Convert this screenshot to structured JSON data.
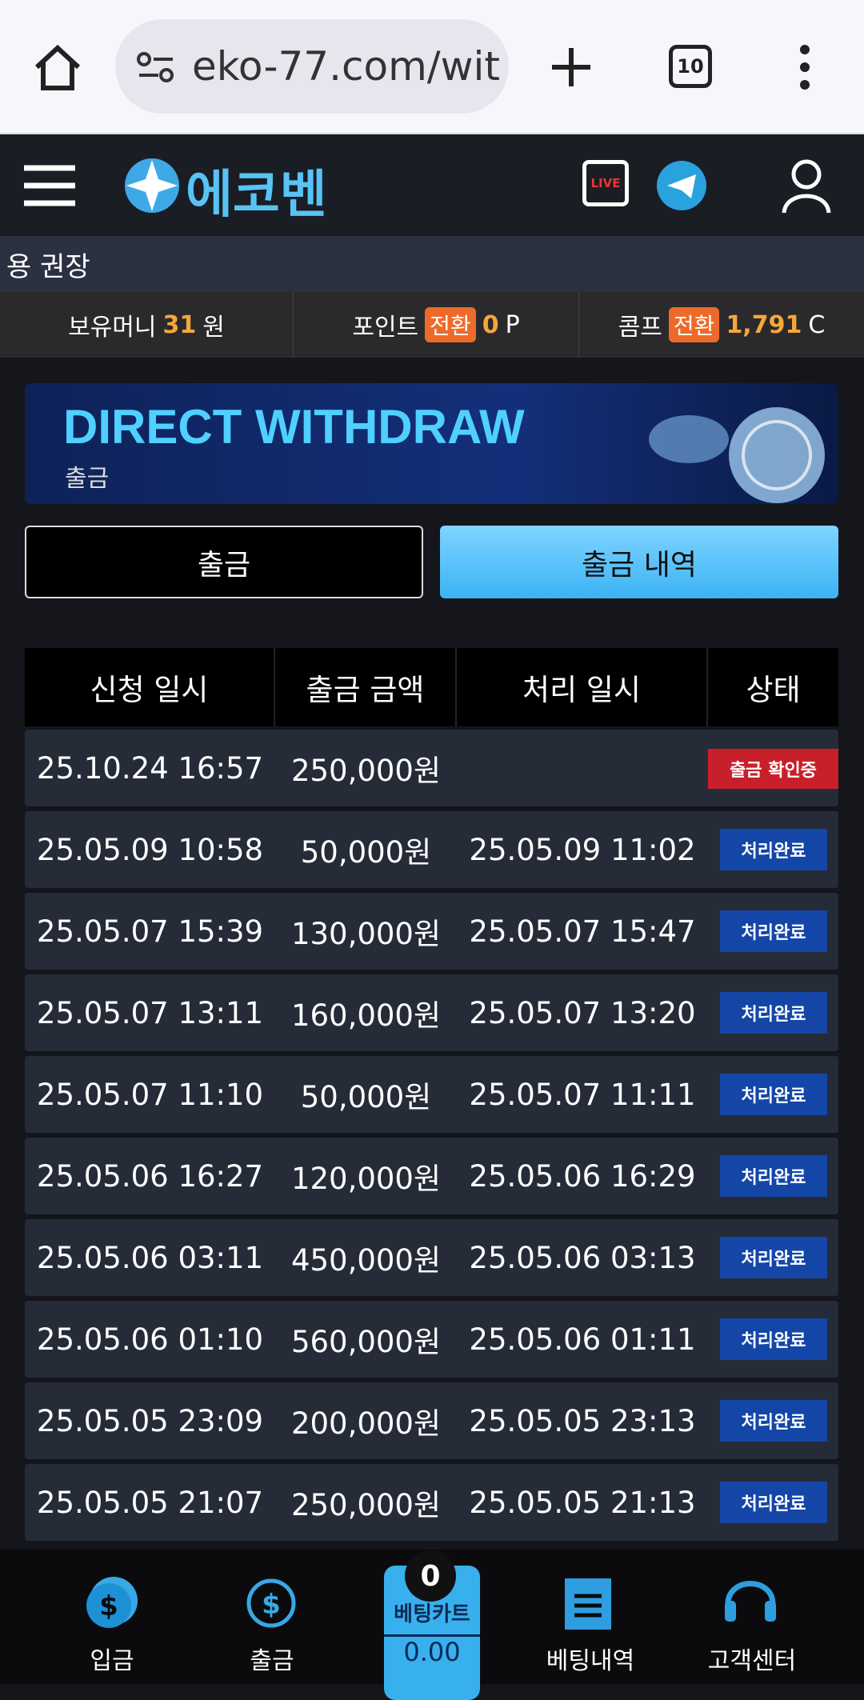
{
  "browser": {
    "url": "eko-77.com/wit",
    "tab_count": "10"
  },
  "header": {
    "logo": "에코벤",
    "live": "LIVE"
  },
  "marquee": "용 권장",
  "balance": {
    "money_label": "보유머니",
    "money": "31",
    "money_unit": "원",
    "point_label": "포인트",
    "point_convert": "전환",
    "point": "0",
    "point_unit": "P",
    "comp_label": "콤프",
    "comp_convert": "전환",
    "comp": "1,791",
    "comp_unit": "C"
  },
  "banner": {
    "title": "DIRECT WITHDRAW",
    "subtitle": "출금"
  },
  "tabs": [
    "출금",
    "출금 내역"
  ],
  "table": {
    "header": [
      "신청 일시",
      "출금 금액",
      "처리 일시",
      "상태"
    ],
    "rows": [
      [
        "25.10.24 16:57",
        "250,000원",
        "",
        "출금 확인중"
      ],
      [
        "25.05.09 10:58",
        "50,000원",
        "25.05.09 11:02",
        "처리완료"
      ],
      [
        "25.05.07 15:39",
        "130,000원",
        "25.05.07 15:47",
        "처리완료"
      ],
      [
        "25.05.07 13:11",
        "160,000원",
        "25.05.07 13:20",
        "처리완료"
      ],
      [
        "25.05.07 11:10",
        "50,000원",
        "25.05.07 11:11",
        "처리완료"
      ],
      [
        "25.05.06 16:27",
        "120,000원",
        "25.05.06 16:29",
        "처리완료"
      ],
      [
        "25.05.06 03:11",
        "450,000원",
        "25.05.06 03:13",
        "처리완료"
      ],
      [
        "25.05.06 01:10",
        "560,000원",
        "25.05.06 01:11",
        "처리완료"
      ],
      [
        "25.05.05 23:09",
        "200,000원",
        "25.05.05 23:13",
        "처리완료"
      ],
      [
        "25.05.05 21:07",
        "250,000원",
        "25.05.05 21:13",
        "처리완료"
      ]
    ]
  },
  "bottom_nav": {
    "cart_count": "0",
    "cart_label": "베팅카트",
    "cart_amount": "0.00",
    "items": [
      "입금",
      "출금",
      "베팅내역",
      "고객센터"
    ]
  }
}
